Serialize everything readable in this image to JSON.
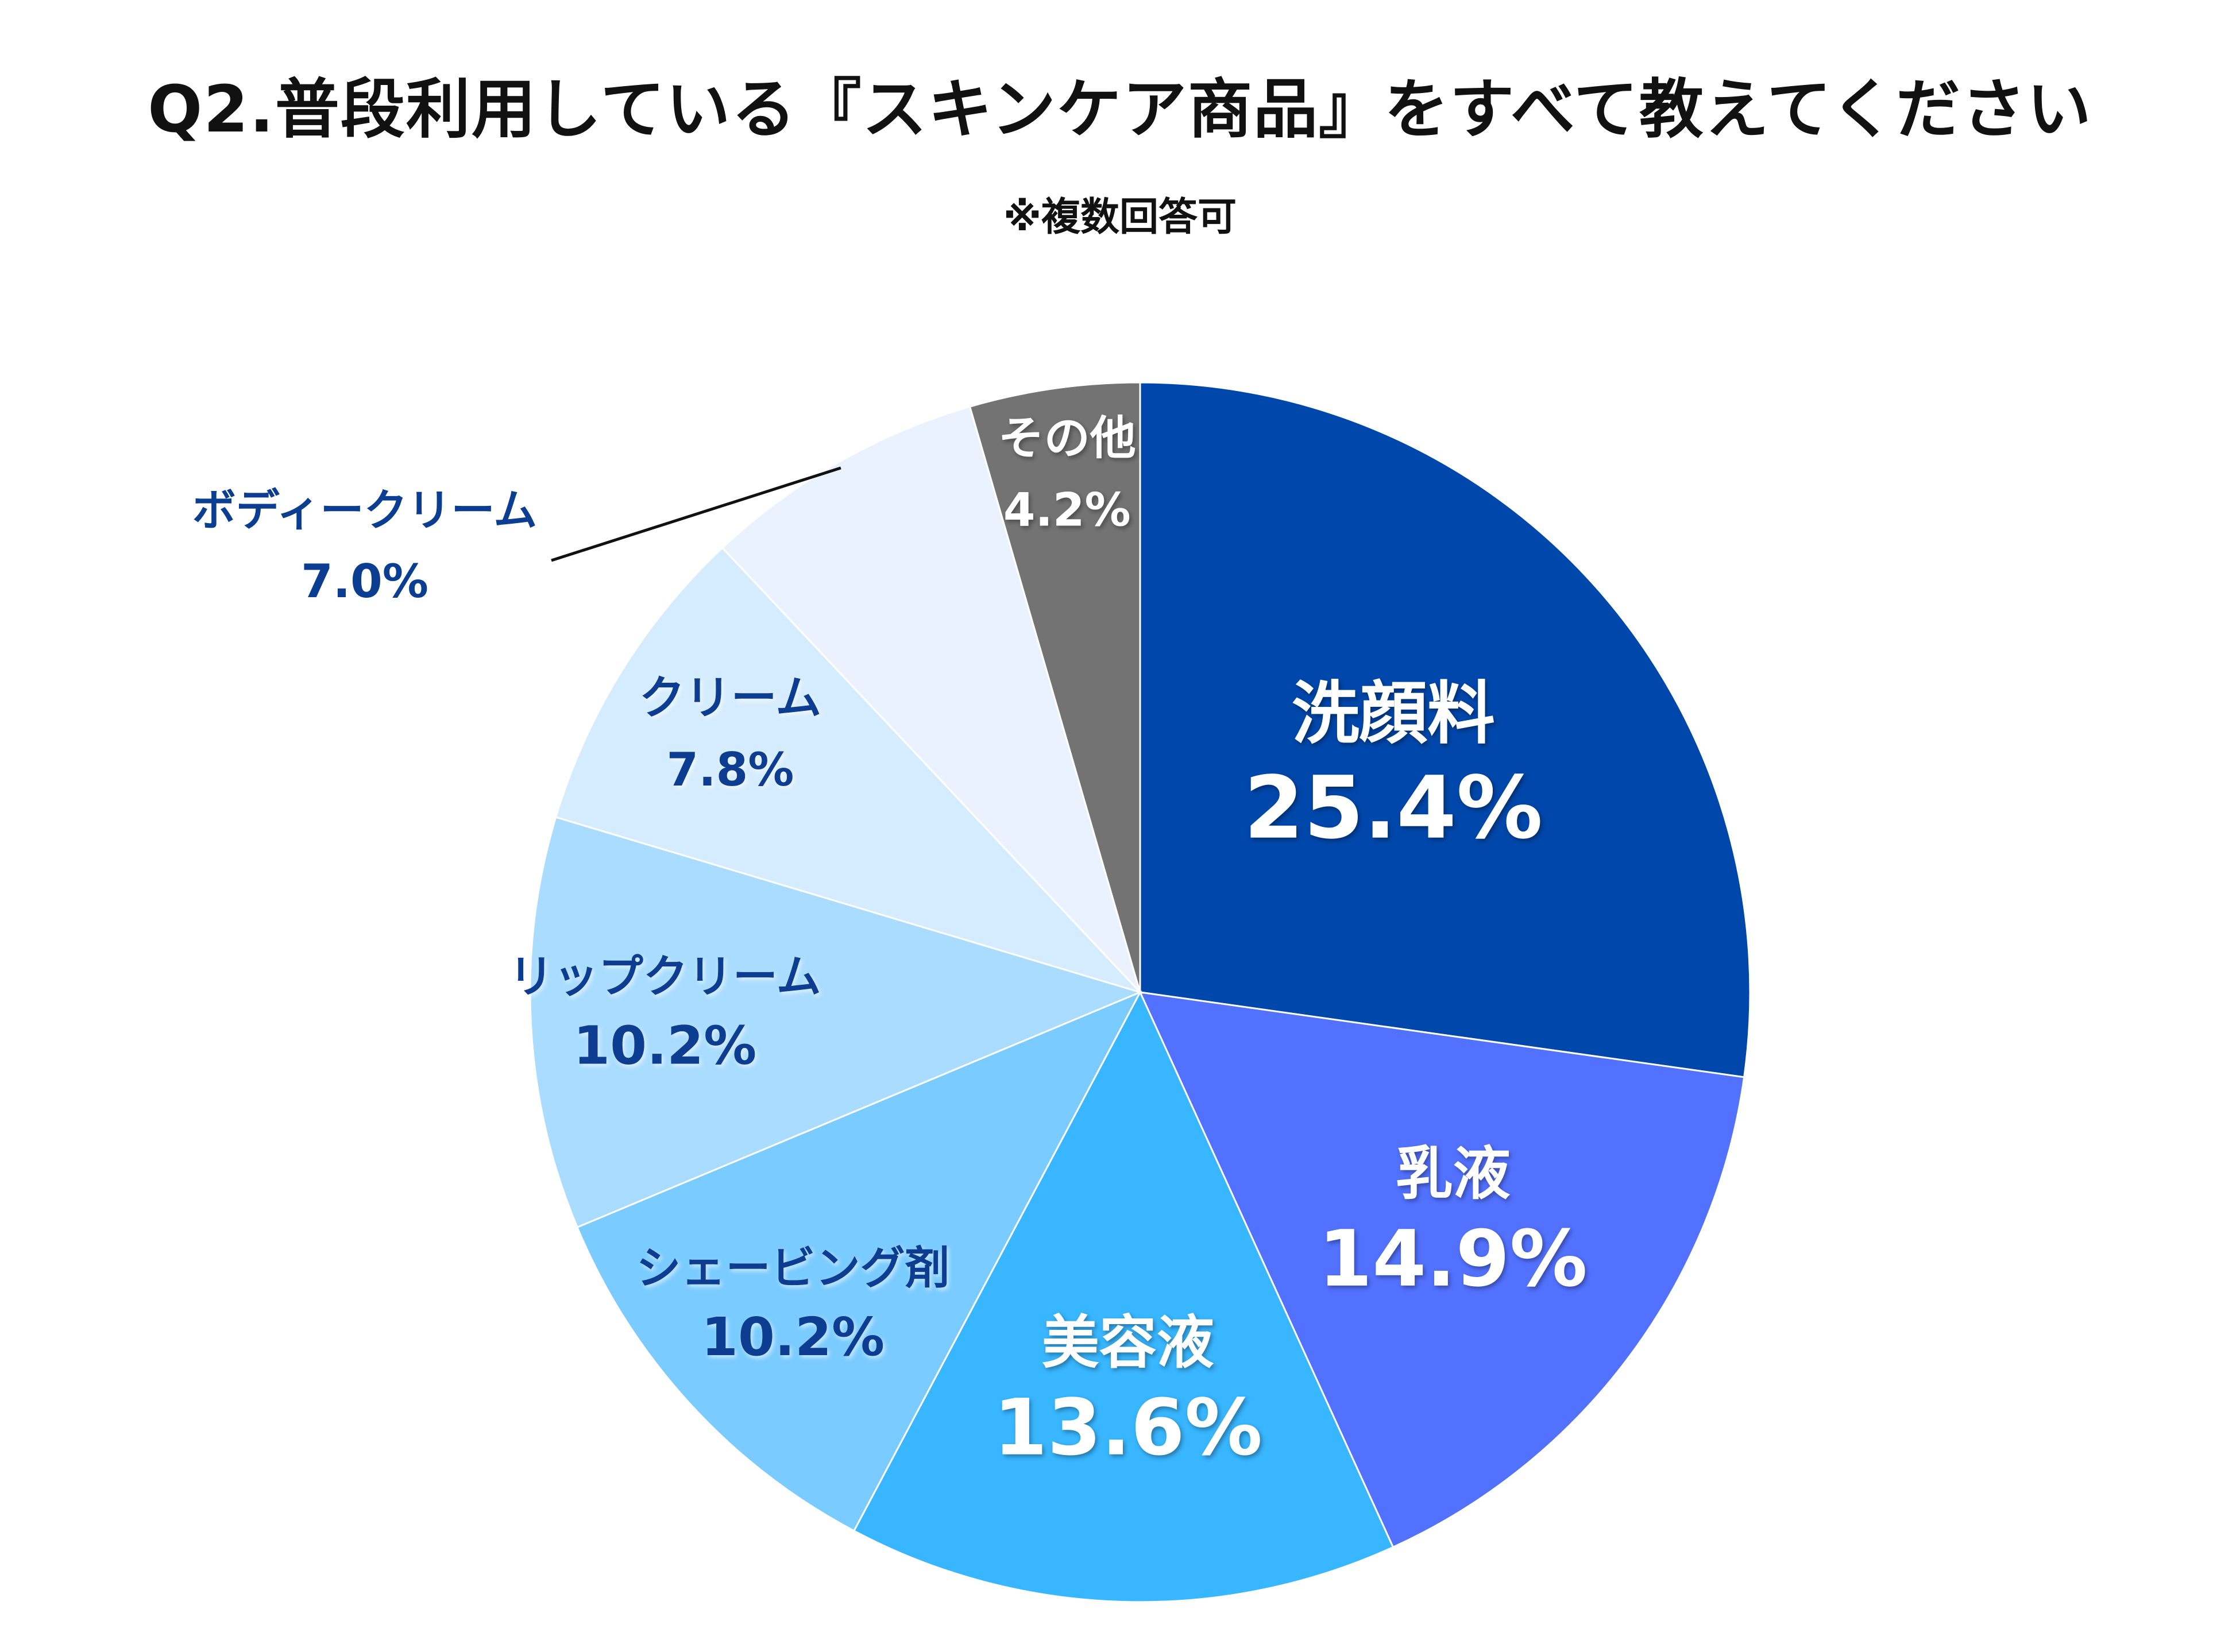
{
  "chart_data": {
    "type": "pie",
    "title": "Q2.普段利用している『スキンケア商品』をすべて教えてください",
    "subtitle": "※複数回答可",
    "slices": [
      {
        "label": "洗顔料",
        "value": 25.4,
        "display": "25.4%",
        "color": "#0047AB",
        "text_color": "#ffffff",
        "label_position": "inside"
      },
      {
        "label": "乳液",
        "value": 14.9,
        "display": "14.9%",
        "color": "#5271FF",
        "text_color": "#ffffff",
        "label_position": "inside"
      },
      {
        "label": "美容液",
        "value": 13.6,
        "display": "13.6%",
        "color": "#38B6FF",
        "text_color": "#ffffff",
        "label_position": "inside"
      },
      {
        "label": "シェービング剤",
        "value": 10.2,
        "display": "10.2%",
        "color": "#7ACBFF",
        "text_color": "#0B3E91",
        "label_position": "inside"
      },
      {
        "label": "リップクリーム",
        "value": 10.2,
        "display": "10.2%",
        "color": "#A9DCFF",
        "text_color": "#0B3E91",
        "label_position": "inside"
      },
      {
        "label": "クリーム",
        "value": 7.8,
        "display": "7.8%",
        "color": "#D5ECFF",
        "text_color": "#0B3E91",
        "label_position": "inside"
      },
      {
        "label": "ボディークリーム",
        "value": 7.0,
        "display": "7.0%",
        "color": "#EAF2FF",
        "text_color": "#0B3E91",
        "label_position": "outside-callout"
      },
      {
        "label": "その他",
        "value": 4.2,
        "display": "4.2%",
        "color": "#737373",
        "text_color": "#ffffff",
        "label_position": "inside"
      }
    ],
    "start_angle": "12 o'clock",
    "direction": "clockwise",
    "legend": "none"
  }
}
